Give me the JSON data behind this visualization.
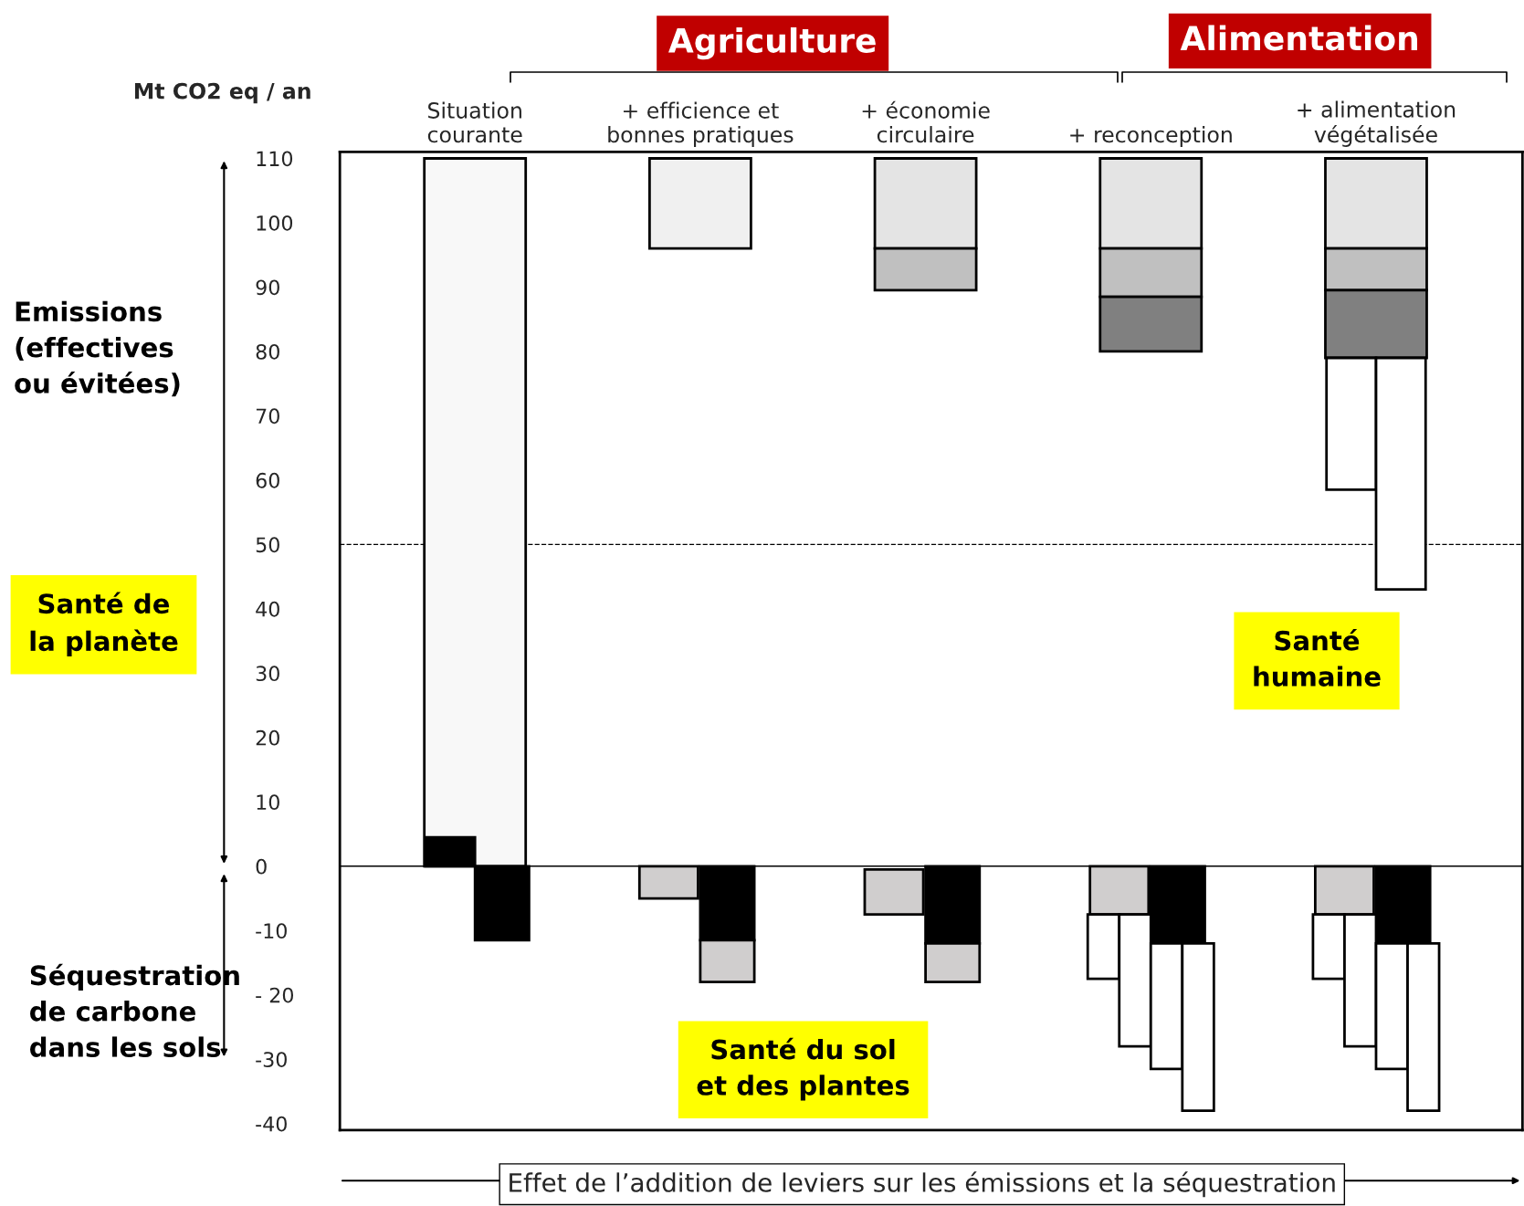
{
  "chart_data": {
    "type": "bar",
    "ylabel": "Mt CO2 eq / an",
    "xlabel": "Effet de l’addition de leviers sur les émissions et la séquestration",
    "categories": [
      "Situation\ncourante",
      "+ efficience et\nbonnes pratiques",
      "+ économie\ncirculaire",
      "+ reconception",
      "+ alimentation\nvégétalisée"
    ],
    "series": [
      {
        "color": "#ffffff",
        "values": [
          null,
          null,
          null,
          10,
          10
        ],
        "base": [
          null,
          null,
          null,
          -17.5,
          -17.5
        ]
      },
      {
        "color": "#d0cece",
        "values": [
          null,
          5,
          7,
          7.5,
          7.5
        ],
        "base": [
          null,
          -5,
          -7.5,
          -7.5,
          -7.5
        ]
      },
      {
        "color": "#000000",
        "values": [
          4.5,
          null,
          null,
          null,
          null
        ],
        "base": [
          0,
          null,
          null,
          null,
          null
        ]
      },
      {
        "color": "#ffffff",
        "values": [
          null,
          null,
          null,
          null,
          20.5
        ],
        "base": [
          null,
          null,
          null,
          null,
          58.5
        ]
      },
      {
        "color": "#ffffff",
        "values": [
          null,
          null,
          null,
          20.5,
          20.5
        ],
        "base": [
          null,
          null,
          null,
          -28,
          -28
        ]
      },
      {
        "colors": [
          "#f8f8f8",
          null,
          null,
          null,
          null
        ],
        "values": [
          110,
          null,
          null,
          null,
          null
        ],
        "base": [
          0,
          null,
          null,
          null,
          null
        ]
      },
      {
        "colors": [
          null,
          "#f0f0f0",
          "#e4e4e4",
          "#e4e4e4",
          "#e4e4e4"
        ],
        "values": [
          null,
          14,
          14,
          14,
          14
        ],
        "base": [
          null,
          96,
          96,
          96,
          96
        ]
      },
      {
        "color": "#c0c0c0",
        "values": [
          null,
          null,
          6.5,
          7.5,
          6.5
        ],
        "base": [
          null,
          null,
          89.5,
          88.5,
          89.5
        ]
      },
      {
        "color": "#808080",
        "values": [
          null,
          null,
          null,
          8.5,
          10.5
        ],
        "base": [
          null,
          null,
          null,
          80,
          79
        ]
      },
      {
        "color": "#ffffff",
        "values": [
          null,
          null,
          null,
          19.5,
          19.5
        ],
        "base": [
          null,
          null,
          null,
          -31.5,
          -31.5
        ]
      },
      {
        "color": "#ffffff",
        "values": [
          null,
          null,
          null,
          null,
          36
        ],
        "base": [
          null,
          null,
          null,
          null,
          43
        ]
      },
      {
        "color": "#000000",
        "values": [
          11.5,
          11.5,
          12,
          12,
          12
        ],
        "base": [
          -11.5,
          -11.5,
          -12,
          -12,
          -12
        ]
      },
      {
        "color": "#d0cece",
        "values": [
          null,
          6.5,
          6,
          null,
          null
        ],
        "base": [
          null,
          -18,
          -18,
          null,
          null
        ]
      },
      {
        "color": "#ffffff",
        "values": [
          null,
          null,
          null,
          26,
          26
        ],
        "base": [
          null,
          null,
          null,
          -38,
          -38
        ]
      }
    ],
    "ylim": [
      -41,
      111
    ],
    "yticks": [
      110,
      100,
      90,
      80,
      70,
      60,
      50,
      40,
      30,
      20,
      10,
      0,
      -10,
      {
        "value": -20,
        "label": "- 20"
      },
      -30,
      -40
    ],
    "ref_lines": [
      {
        "axis": "y",
        "value": 50,
        "line_style": "dashed",
        "color": "#000000"
      },
      {
        "axis": "y",
        "value": 0,
        "line_style": "solid",
        "color": "#000000"
      }
    ],
    "annotations": [
      "Agriculture",
      "Alimentation",
      "Emissions\n(effectives\nou évitées)",
      "Santé de\nla planète",
      "Séquestration\nde carbone\ndans les sols",
      "Santé\nhumaine",
      "Santé du sol\net des plantes"
    ],
    "grid": false,
    "legend": false
  }
}
